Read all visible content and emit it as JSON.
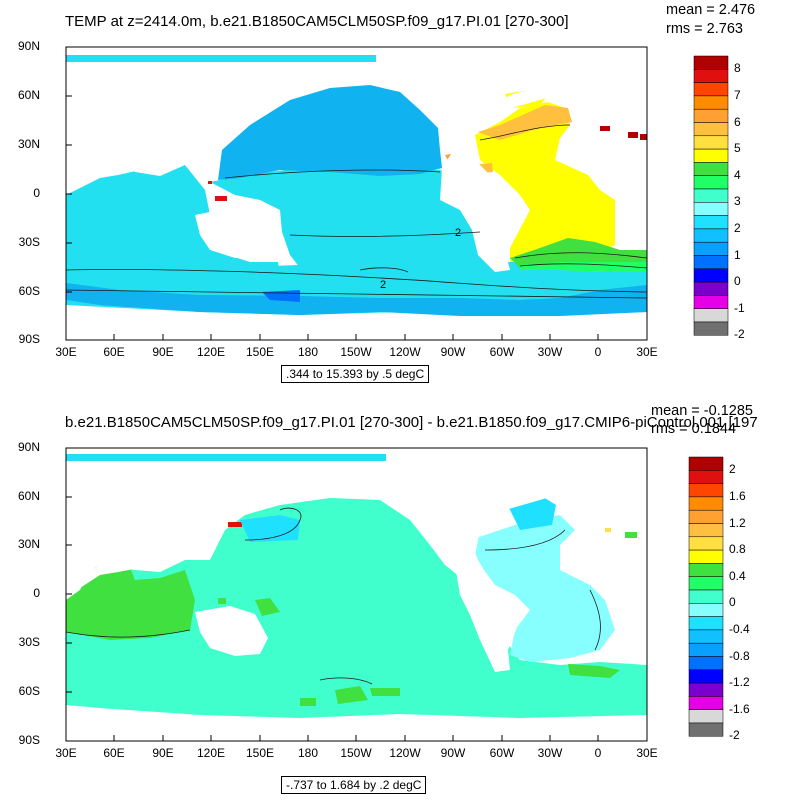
{
  "colors": {
    "land": "#ffffff",
    "frame": "#000000",
    "contour": "#1a1a1a"
  },
  "panels": [
    {
      "title": "TEMP at z=2414.0m, b.e21.B1850CAM5CLM50SP.f09_g17.PI.01 [270-300]",
      "mean_text": "mean = 2.476",
      "rms_text": "rms = 2.763",
      "range_text": ".344 to 15.393 by .5 degC",
      "lat_labels": [
        "90N",
        "60N",
        "30N",
        "0",
        "30S",
        "60S",
        "90S"
      ],
      "lon_labels": [
        "30E",
        "60E",
        "90E",
        "120E",
        "150E",
        "180",
        "150W",
        "120W",
        "90W",
        "60W",
        "30W",
        "0",
        "30E"
      ],
      "contour_labels": [
        "2",
        "2"
      ],
      "colorbar": {
        "colors": [
          "#b00000",
          "#e01010",
          "#ff4500",
          "#ff8c00",
          "#ffa033",
          "#ffc040",
          "#ffe040",
          "#ffff00",
          "#40e040",
          "#22ff66",
          "#40ffcc",
          "#88ffff",
          "#20e0ff",
          "#10c0ff",
          "#0aa0ff",
          "#0070ff",
          "#0000ff",
          "#7b00d0",
          "#e600e6",
          "#d8d8d8",
          "#707070"
        ],
        "labels": [
          "8",
          "7",
          "6",
          "5",
          "4",
          "3",
          "2",
          "1",
          "0",
          "-1",
          "-2"
        ]
      }
    },
    {
      "title": "b.e21.B1850CAM5CLM50SP.f09_g17.PI.01 [270-300] - b.e21.B1850.f09_g17.CMIP6-piControl.001 [197",
      "mean_text": "mean = -0.1285",
      "rms_text": "rms = 0.1844",
      "range_text": "-.737 to 1.684 by .2 degC",
      "lat_labels": [
        "90N",
        "60N",
        "30N",
        "0",
        "30S",
        "60S",
        "90S"
      ],
      "lon_labels": [
        "30E",
        "60E",
        "90E",
        "120E",
        "150E",
        "180",
        "150W",
        "120W",
        "90W",
        "60W",
        "30W",
        "0",
        "30E"
      ],
      "contour_labels": [],
      "colorbar": {
        "colors": [
          "#b00000",
          "#e01010",
          "#ff4500",
          "#ff8c00",
          "#ffa033",
          "#ffc040",
          "#ffe040",
          "#ffff00",
          "#40e040",
          "#22ff66",
          "#40ffcc",
          "#88ffff",
          "#20e0ff",
          "#10c0ff",
          "#0aa0ff",
          "#0070ff",
          "#0000ff",
          "#7b00d0",
          "#e600e6",
          "#d8d8d8",
          "#707070"
        ],
        "labels": [
          "2",
          "1.6",
          "1.2",
          "0.8",
          "0.4",
          "0",
          "-0.4",
          "-0.8",
          "-1.2",
          "-1.6",
          "-2"
        ]
      }
    }
  ]
}
